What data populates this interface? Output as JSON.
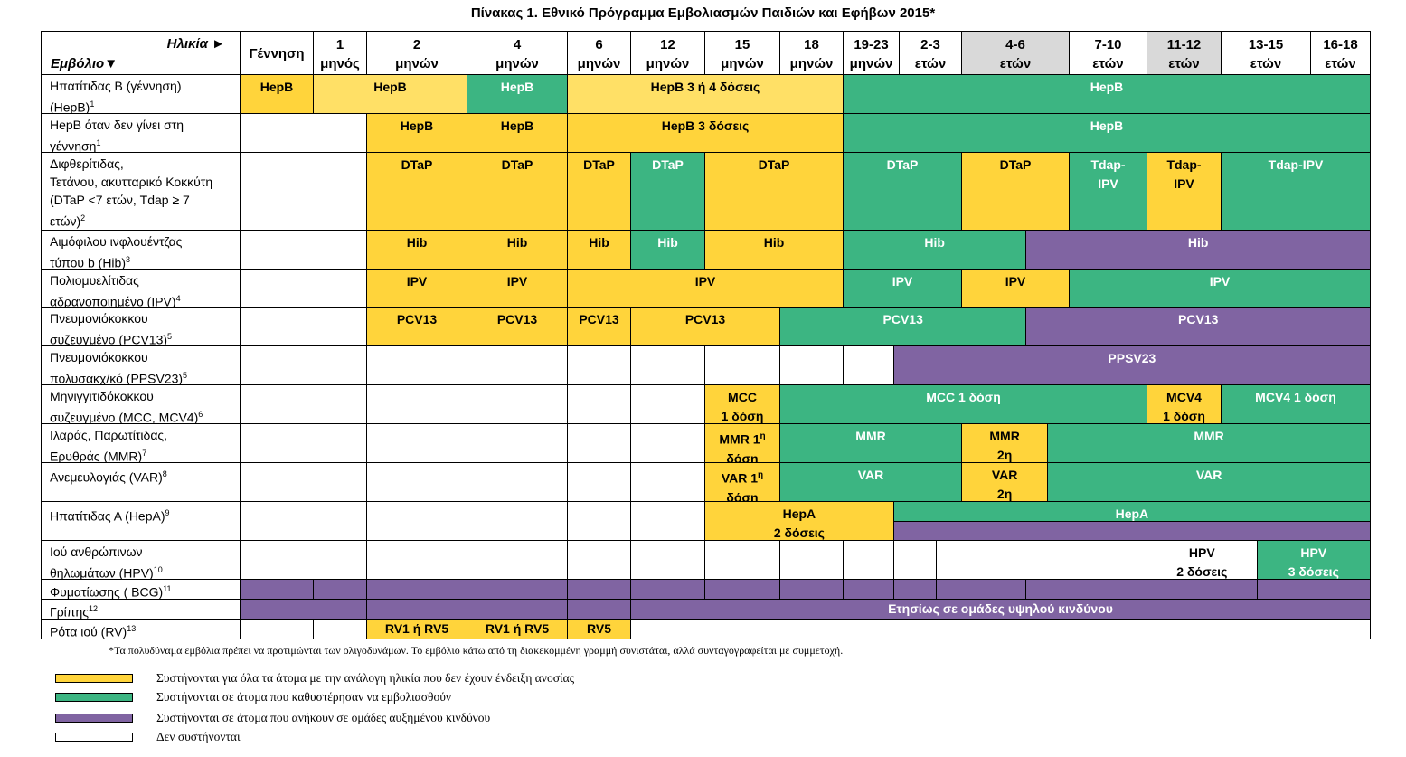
{
  "title": "Πίνακας 1.  Εθνικό Πρόγραμμα Εμβολιασμών Παιδιών και Εφήβων 2015*",
  "header": {
    "age_label": "Ηλικία ►",
    "vaccine_label": "Εμβόλιο▼",
    "columns": [
      {
        "l1": "Γέννηση",
        "l2": ""
      },
      {
        "l1": "1",
        "l2": "μηνός"
      },
      {
        "l1": "2",
        "l2": "μηνών"
      },
      {
        "l1": "4",
        "l2": "μηνών"
      },
      {
        "l1": "6",
        "l2": "μηνών"
      },
      {
        "l1": "12",
        "l2": "μηνών"
      },
      {
        "l1": "15",
        "l2": "μηνών"
      },
      {
        "l1": "18",
        "l2": "μηνών"
      },
      {
        "l1": "19-23",
        "l2": "μηνών"
      },
      {
        "l1": "2-3",
        "l2": "ετών"
      },
      {
        "l1": "4-6",
        "l2": "ετών"
      },
      {
        "l1": "7-10",
        "l2": "ετών"
      },
      {
        "l1": "11-12",
        "l2": "ετών"
      },
      {
        "l1": "13-15",
        "l2": "ετών"
      },
      {
        "l1": "16-18",
        "l2": "ετών"
      }
    ]
  },
  "rows": [
    {
      "name": "Ηπατίτιδας Β (γέννηση)",
      "sup": "1",
      "name2": "(HepB)",
      "bars": [
        {
          "c": "y",
          "text": "HepB"
        },
        {
          "c": "ly",
          "text": "HepB"
        },
        {
          "c": "g",
          "text": "HepB"
        },
        {
          "c": "ly",
          "text": "HepB 3 ή 4 δόσεις"
        },
        {
          "c": "g",
          "text": "HepB"
        }
      ]
    },
    {
      "name": "HepB  όταν δεν γίνει  στη",
      "name2": "γέννηση",
      "sup": "1",
      "bars": [
        {
          "c": "w",
          "text": ""
        },
        {
          "c": "y",
          "text": "HepB"
        },
        {
          "c": "y",
          "text": "HepB"
        },
        {
          "c": "y",
          "text": "HepB 3 δόσεις"
        },
        {
          "c": "g",
          "text": "HepB"
        }
      ]
    },
    {
      "name": "Διφθερίτιδας,",
      "name2": "Τετάνου, ακυτταρικό Κοκκύτη",
      "name3": "(DTaP <7 ετών, Tdap ≥ 7",
      "name4": "ετών)",
      "sup": "2",
      "bars": [
        {
          "c": "w",
          "text": ""
        },
        {
          "c": "y",
          "text": "DTaP"
        },
        {
          "c": "y",
          "text": "DTaP"
        },
        {
          "c": "y",
          "text": "DTaP"
        },
        {
          "c": "g",
          "text": "DTaP"
        },
        {
          "c": "y",
          "text": "DTaP"
        },
        {
          "c": "g",
          "text": "DTaP"
        },
        {
          "c": "y",
          "text": "DTaP"
        },
        {
          "c": "g",
          "text": "Tdap-\nIPV"
        },
        {
          "c": "y",
          "text": "Tdap-\nIPV"
        },
        {
          "c": "g",
          "text": "Tdap-IPV"
        }
      ]
    },
    {
      "name": "Αιμόφιλου ινφλουέντζας",
      "name2": "τύπου b (Hib)",
      "sup": "3",
      "bars": [
        {
          "c": "w",
          "text": ""
        },
        {
          "c": "y",
          "text": "Hib"
        },
        {
          "c": "y",
          "text": "Hib"
        },
        {
          "c": "y",
          "text": "Hib"
        },
        {
          "c": "g",
          "text": "Hib"
        },
        {
          "c": "y",
          "text": "Hib"
        },
        {
          "c": "g",
          "text": "Hib"
        },
        {
          "c": "p",
          "text": "Hib"
        }
      ]
    },
    {
      "name": "Πολιομυελίτιδας",
      "name2": "αδρανοποιημένο (IPV)",
      "sup": "4",
      "bars": [
        {
          "c": "w",
          "text": ""
        },
        {
          "c": "y",
          "text": "IPV"
        },
        {
          "c": "y",
          "text": "IPV"
        },
        {
          "c": "y",
          "text": "IPV"
        },
        {
          "c": "g",
          "text": "IPV"
        },
        {
          "c": "y",
          "text": "IPV"
        },
        {
          "c": "g",
          "text": "IPV"
        }
      ]
    },
    {
      "name": "Πνευμονιόκοκκου",
      "name2": "συζευγμένο (PCV13)",
      "sup": "5",
      "bars": [
        {
          "c": "w",
          "text": ""
        },
        {
          "c": "y",
          "text": "PCV13"
        },
        {
          "c": "y",
          "text": "PCV13"
        },
        {
          "c": "y",
          "text": "PCV13"
        },
        {
          "c": "y",
          "text": "PCV13"
        },
        {
          "c": "g",
          "text": "PCV13"
        },
        {
          "c": "p",
          "text": "PCV13"
        }
      ]
    },
    {
      "name": "Πνευμονιόκοκκου",
      "name2": "πολυσακχ/κό (PPSV23)",
      "sup": "5",
      "bars": [
        {
          "c": "w",
          "text": ""
        },
        {
          "c": "w",
          "text": ""
        },
        {
          "c": "w",
          "text": ""
        },
        {
          "c": "w",
          "text": ""
        },
        {
          "c": "w",
          "text": ""
        },
        {
          "c": "w",
          "text": ""
        },
        {
          "c": "w",
          "text": ""
        },
        {
          "c": "w",
          "text": ""
        },
        {
          "c": "w",
          "text": ""
        },
        {
          "c": "p",
          "text": "PPSV23"
        }
      ]
    },
    {
      "name": "Μηνιγγιτιδόκοκκου",
      "name2": "συζευγμένο (MCC, MCV4)",
      "sup": "6",
      "bars": [
        {
          "c": "w",
          "text": ""
        },
        {
          "c": "w",
          "text": ""
        },
        {
          "c": "w",
          "text": ""
        },
        {
          "c": "w",
          "text": ""
        },
        {
          "c": "w",
          "text": ""
        },
        {
          "c": "y",
          "text": "MCC\n1 δόση"
        },
        {
          "c": "g",
          "text": "MCC 1 δόση"
        },
        {
          "c": "y",
          "text": "MCV4\n1 δόση"
        },
        {
          "c": "g",
          "text": "MCV4 1 δόση"
        }
      ]
    },
    {
      "name": "Ιλαράς, Παρωτίτιδας,",
      "name2": "Ερυθράς (MMR)",
      "sup": "7",
      "bars": [
        {
          "c": "w",
          "text": ""
        },
        {
          "c": "w",
          "text": ""
        },
        {
          "c": "w",
          "text": ""
        },
        {
          "c": "w",
          "text": ""
        },
        {
          "c": "w",
          "text": ""
        },
        {
          "c": "y",
          "text": "MMR 1η δόση"
        },
        {
          "c": "g",
          "text": "MMR"
        },
        {
          "c": "y",
          "text": "MMR\n2η"
        },
        {
          "c": "g",
          "text": "MMR"
        }
      ]
    },
    {
      "name": "Ανεμευλογιάς (VAR)",
      "sup": "8",
      "bars": [
        {
          "c": "w",
          "text": ""
        },
        {
          "c": "w",
          "text": ""
        },
        {
          "c": "w",
          "text": ""
        },
        {
          "c": "w",
          "text": ""
        },
        {
          "c": "w",
          "text": ""
        },
        {
          "c": "y",
          "text": "VAR 1η δόση"
        },
        {
          "c": "g",
          "text": "VAR"
        },
        {
          "c": "y",
          "text": "VAR\n2η"
        },
        {
          "c": "g",
          "text": "VAR"
        }
      ]
    },
    {
      "name": "Ηπατίτιδας Α  (HepA)",
      "sup": "9",
      "bars": [
        {
          "c": "w",
          "text": ""
        },
        {
          "c": "w",
          "text": ""
        },
        {
          "c": "w",
          "text": ""
        },
        {
          "c": "w",
          "text": ""
        },
        {
          "c": "w",
          "text": ""
        },
        {
          "c": "y",
          "text": "HepA\n2 δόσεις"
        },
        {
          "c": "g",
          "text": "HepA"
        },
        {
          "c": "p",
          "text": ""
        }
      ]
    },
    {
      "name": "Ιού ανθρώπινων",
      "name2": "θηλωμάτων (HPV)",
      "sup": "10",
      "bars": [
        {
          "c": "w",
          "text": ""
        },
        {
          "c": "w",
          "text": ""
        },
        {
          "c": "w",
          "text": ""
        },
        {
          "c": "w",
          "text": ""
        },
        {
          "c": "w",
          "text": ""
        },
        {
          "c": "w",
          "text": ""
        },
        {
          "c": "w",
          "text": ""
        },
        {
          "c": "w",
          "text": ""
        },
        {
          "c": "w",
          "text": ""
        },
        {
          "c": "w",
          "text": ""
        },
        {
          "c": "w",
          "text": ""
        },
        {
          "c": "w",
          "text": "HPV\n2 δόσεις"
        },
        {
          "c": "g",
          "text": "HPV\n3 δόσεις"
        }
      ]
    },
    {
      "name": "Φυματίωσης ( BCG)",
      "sup": "11",
      "bars": [
        {
          "c": "p",
          "text": ""
        },
        {
          "c": "p",
          "text": ""
        },
        {
          "c": "p",
          "text": ""
        },
        {
          "c": "p",
          "text": ""
        },
        {
          "c": "p",
          "text": ""
        },
        {
          "c": "p",
          "text": ""
        },
        {
          "c": "p",
          "text": ""
        },
        {
          "c": "p",
          "text": ""
        },
        {
          "c": "p",
          "text": ""
        },
        {
          "c": "p",
          "text": ""
        },
        {
          "c": "p",
          "text": ""
        },
        {
          "c": "p",
          "text": ""
        },
        {
          "c": "p",
          "text": ""
        },
        {
          "c": "p",
          "text": ""
        }
      ]
    },
    {
      "name": "Γρίπης",
      "sup": "12",
      "bars": [
        {
          "c": "p",
          "text": ""
        },
        {
          "c": "p",
          "text": ""
        },
        {
          "c": "p",
          "text": ""
        },
        {
          "c": "p",
          "text": ""
        },
        {
          "c": "p",
          "text": "Ετησίως σε ομάδες υψηλού κινδύνου"
        }
      ]
    },
    {
      "name": "Ρότα ιού (RV)",
      "sup": "13",
      "bars": [
        {
          "c": "w",
          "text": ""
        },
        {
          "c": "w",
          "text": ""
        },
        {
          "c": "y",
          "text": "RV1 ή  RV5"
        },
        {
          "c": "y",
          "text": "RV1 ή  RV5"
        },
        {
          "c": "y",
          "text": "RV5"
        },
        {
          "c": "w",
          "text": ""
        }
      ]
    }
  ],
  "footnote": "*Τα πολυδύναμα εμβόλια πρέπει να προτιμώνται των ολιγοδυνάμων. Το εμβόλιο κάτω από τη διακεκομμένη γραμμή συνιστάται, αλλά συνταγογραφείται με συμμετοχή.",
  "legend": [
    {
      "color": "#ffd43b",
      "text": "Συστήνονται για όλα τα άτομα με την ανάλογη ηλικία που δεν έχουν ένδειξη ανοσίας"
    },
    {
      "color": "#3cb582",
      "text": "Συστήνονται σε άτομα που καθυστέρησαν να εμβολιασθούν"
    },
    {
      "color": "#8064a2",
      "text": "Συστήνονται σε άτομα που ανήκουν σε ομάδες αυξημένου κινδύνου"
    },
    {
      "color": "#ffffff",
      "text": "Δεν συστήνονται"
    }
  ]
}
